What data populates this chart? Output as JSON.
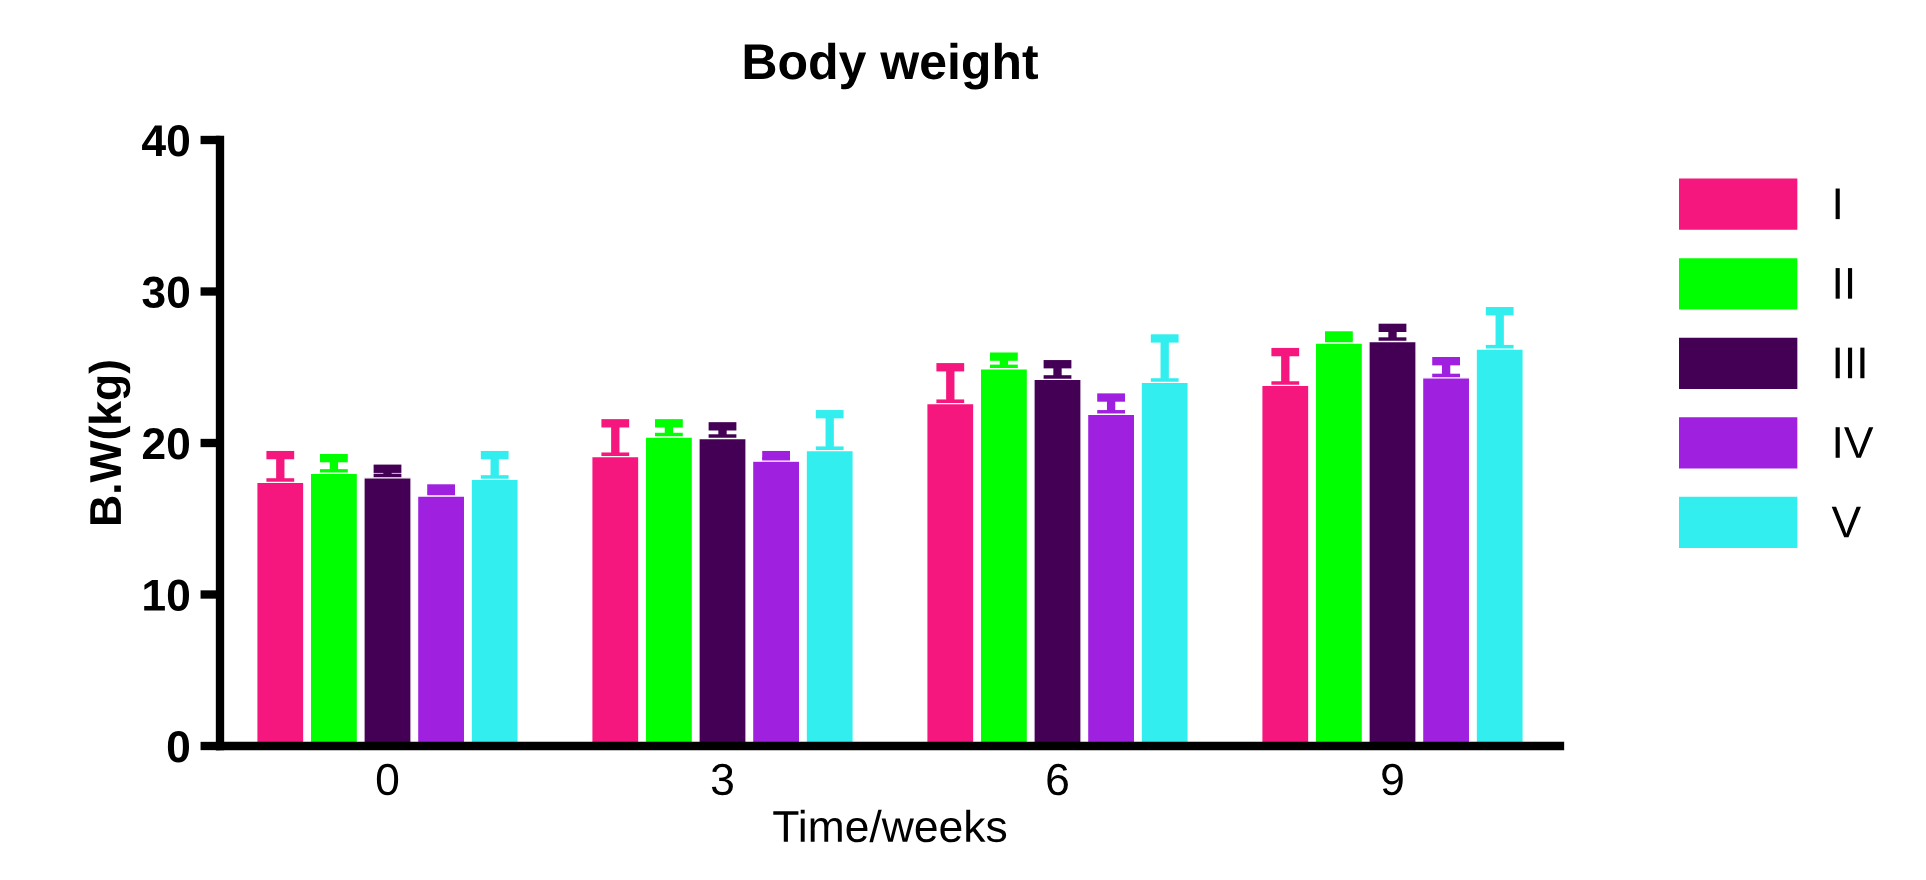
{
  "chart_data": {
    "type": "bar",
    "title": "Body weight",
    "xlabel": "Time/weeks",
    "ylabel": "B.W(kg)",
    "categories": [
      "0",
      "3",
      "6",
      "9"
    ],
    "series": [
      {
        "name": "I",
        "color": "#f5167e",
        "values": [
          17.4,
          19.1,
          22.6,
          23.8
        ],
        "errors": [
          [
            17.4,
            19.2
          ],
          [
            19.1,
            21.3
          ],
          [
            22.6,
            25.0
          ],
          [
            23.8,
            26.0
          ]
        ]
      },
      {
        "name": "II",
        "color": "#00ff00",
        "values": [
          18.0,
          20.4,
          24.9,
          26.6
        ],
        "errors": [
          [
            18.0,
            19.0
          ],
          [
            20.4,
            21.3
          ],
          [
            24.9,
            25.7
          ],
          [
            26.6,
            27.1
          ]
        ]
      },
      {
        "name": "III",
        "color": "#440055",
        "values": [
          17.7,
          20.3,
          24.2,
          26.7
        ],
        "errors": [
          [
            17.7,
            18.3
          ],
          [
            20.3,
            21.1
          ],
          [
            24.2,
            25.2
          ],
          [
            26.7,
            27.6
          ]
        ]
      },
      {
        "name": "IV",
        "color": "#a020e0",
        "values": [
          16.5,
          18.8,
          21.9,
          24.3
        ],
        "errors": [
          [
            16.5,
            17.0
          ],
          [
            18.8,
            19.2
          ],
          [
            21.9,
            23.0
          ],
          [
            24.3,
            25.4
          ]
        ]
      },
      {
        "name": "V",
        "color": "#33eeee",
        "values": [
          17.6,
          19.5,
          24.0,
          26.2
        ],
        "errors": [
          [
            17.6,
            19.2
          ],
          [
            19.5,
            21.9
          ],
          [
            24.0,
            26.9
          ],
          [
            26.2,
            28.7
          ]
        ]
      }
    ],
    "ylim": [
      0,
      40
    ],
    "yticks": [
      0,
      10,
      20,
      30,
      40
    ],
    "grid": false,
    "legend": "right"
  }
}
